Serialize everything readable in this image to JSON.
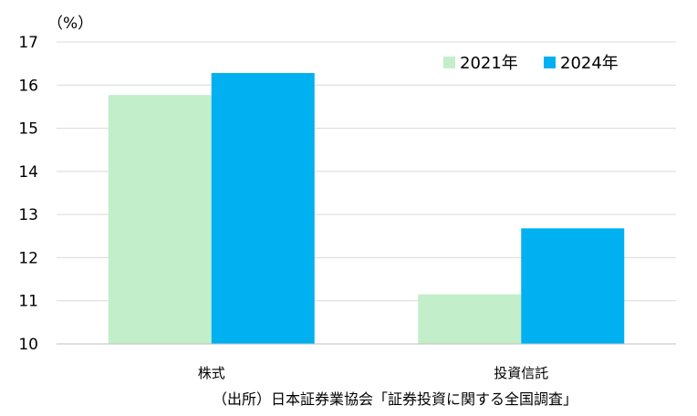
{
  "chart_data": {
    "type": "bar",
    "categories": [
      "株式",
      "投資信託"
    ],
    "series": [
      {
        "name": "2021年",
        "values": [
          15.77,
          11.15
        ],
        "color": "#c2efc9"
      },
      {
        "name": "2024年",
        "values": [
          16.28,
          12.68
        ],
        "color": "#00b0f0"
      }
    ],
    "y_unit": "（%）",
    "ylim": [
      10,
      17
    ],
    "yticks": [
      10,
      11,
      12,
      13,
      14,
      15,
      16,
      17
    ],
    "grid": true,
    "legend_position": "top-right"
  },
  "source_note": "（出所）日本証券業協会「証券投資に関する全国調査」"
}
